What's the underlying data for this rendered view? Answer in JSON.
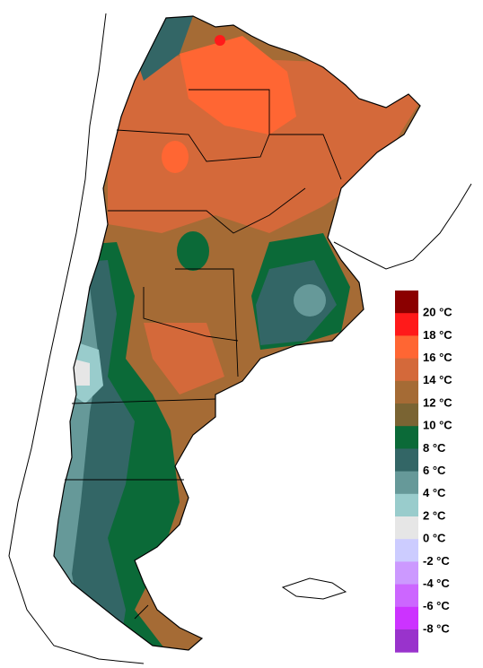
{
  "legend": {
    "colors": [
      "#8b0000",
      "#ff1a1a",
      "#ff6633",
      "#d4693a",
      "#a56b35",
      "#7a6433",
      "#0b6a38",
      "#336666",
      "#669999",
      "#99cccc",
      "#e6e6e6",
      "#ccccff",
      "#cc99ff",
      "#cc66ff",
      "#cc33ff",
      "#9933cc"
    ],
    "labels": [
      "20 °C",
      "18 °C",
      "16 °C",
      "14 °C",
      "12 °C",
      "10 °C",
      "8 °C",
      "6 °C",
      "4 °C",
      "2 °C",
      "0 °C",
      "-2 °C",
      "-4 °C",
      "-6 °C",
      "-8 °C"
    ]
  }
}
